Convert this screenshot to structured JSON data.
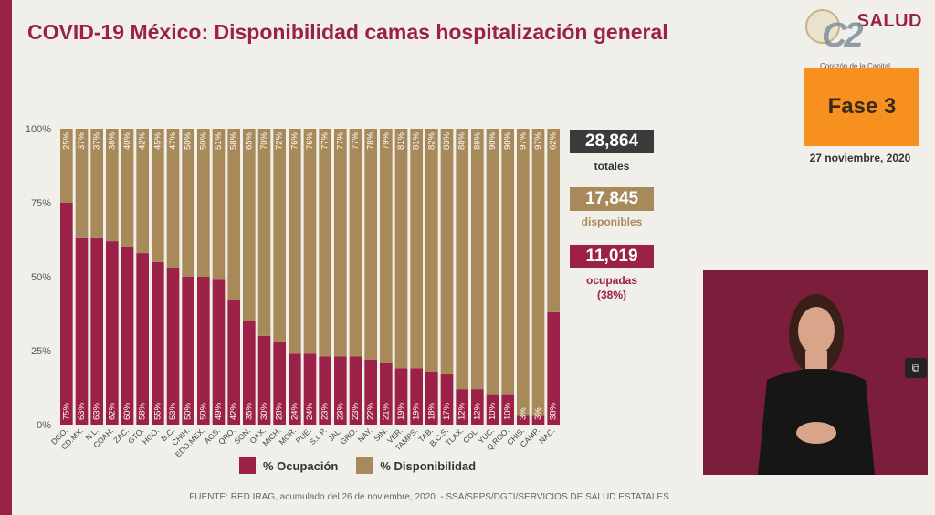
{
  "title": "COVID-19 México: Disponibilidad camas hospitalización general",
  "logo": {
    "brand": "SALUD",
    "c2_text": "C2",
    "subtitle": "Corazón de la Capital"
  },
  "phase": "Fase 3",
  "date": "27 noviembre, 2020",
  "stats": {
    "total_value": "28,864",
    "total_label": "totales",
    "available_value": "17,845",
    "available_label": "disponibles",
    "occupied_value": "11,019",
    "occupied_label_1": "ocupadas",
    "occupied_label_2": "(38%)"
  },
  "legend": {
    "occupation": "% Ocupación",
    "availability": "% Disponibilidad"
  },
  "source": "FUENTE: RED IRAG, acumulado del 26 de noviembre, 2020. - SSA/SPPS/DGTI/SERVICIOS DE SALUD ESTATALES",
  "colors": {
    "occupation": "#9c2148",
    "availability": "#a88a5a",
    "accent": "#9c2148",
    "phase_bg": "#f7901e",
    "total_bg": "#3b3b3b",
    "available_bg": "#a88a5a",
    "occupied_bg": "#9c2148"
  },
  "icons": {
    "video_toggle": "picture-in-picture-icon"
  },
  "chart_data": {
    "type": "bar",
    "stacked": true,
    "categories": [
      "DGO.",
      "CD.MX.",
      "N.L.",
      "COAH.",
      "ZAC.",
      "GTO.",
      "HGO.",
      "B.C.",
      "CHIH.",
      "EDO.MEX.",
      "AGS.",
      "QRO.",
      "SON.",
      "OAX.",
      "MICH.",
      "MOR.",
      "PUE.",
      "S.L.P.",
      "JAL.",
      "GRO.",
      "NAY.",
      "SIN.",
      "VER.",
      "TAMPS.",
      "TAB.",
      "B.C.S.",
      "TLAX.",
      "COL.",
      "YUC.",
      "Q.ROO.",
      "CHIS.",
      "CAMP.",
      "NAC."
    ],
    "series": [
      {
        "name": "% Ocupación",
        "values": [
          75,
          63,
          63,
          62,
          60,
          58,
          55,
          53,
          50,
          50,
          49,
          42,
          35,
          30,
          28,
          24,
          24,
          23,
          23,
          23,
          22,
          21,
          19,
          19,
          18,
          17,
          12,
          12,
          10,
          10,
          3,
          3,
          38
        ]
      },
      {
        "name": "% Disponibilidad",
        "values": [
          25,
          37,
          37,
          38,
          40,
          42,
          45,
          47,
          50,
          50,
          51,
          58,
          65,
          70,
          72,
          76,
          76,
          77,
          77,
          77,
          78,
          79,
          81,
          81,
          82,
          83,
          88,
          88,
          90,
          90,
          97,
          97,
          62
        ]
      }
    ],
    "ytick_labels": [
      "0%",
      "25%",
      "50%",
      "75%",
      "100%"
    ],
    "ylim": [
      0,
      100
    ],
    "grid": false,
    "legend_position": "bottom"
  }
}
